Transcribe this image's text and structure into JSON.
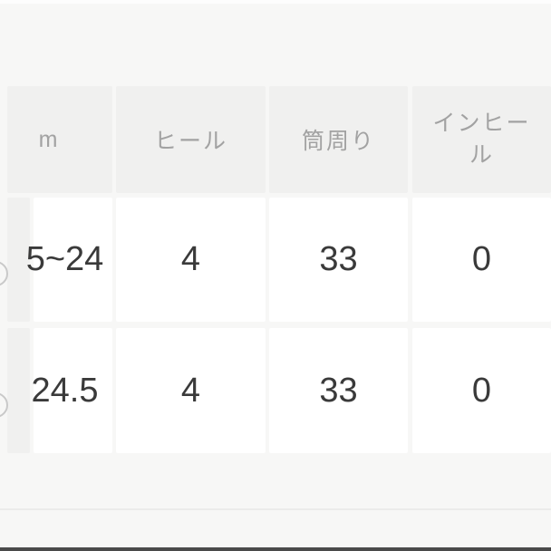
{
  "colors": {
    "page_bg": "#f7f7f6",
    "header_bg": "#f0f0ef",
    "cell_bg": "#ffffff",
    "header_text": "#a2a2a2",
    "body_text": "#3a3a3a",
    "bottom_bar": "#4a4a4a",
    "divider": "#ebebea",
    "circle_stroke": "#c9c9c9",
    "top_strip": "#fdfdfd"
  },
  "size_table": {
    "headers": [
      {
        "id": "cm",
        "label": "m"
      },
      {
        "id": "heel",
        "label": "ヒール"
      },
      {
        "id": "shaft",
        "label": "筒周り"
      },
      {
        "id": "inheel",
        "label": "インヒール"
      }
    ],
    "rows": [
      {
        "cm": "5~24",
        "heel": "4",
        "shaft": "33",
        "inheel": "0"
      },
      {
        "cm": "24.5",
        "heel": "4",
        "shaft": "33",
        "inheel": "0"
      }
    ]
  }
}
